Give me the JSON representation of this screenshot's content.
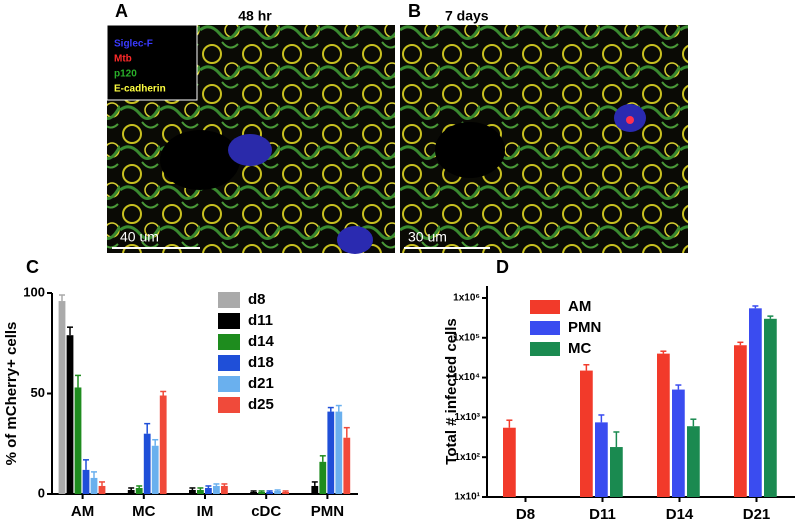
{
  "panels": [
    {
      "label": "A",
      "title": "48 hr",
      "legend": [
        "Siglec-F",
        "Mtb",
        "p120",
        "E-cadherin"
      ],
      "scale_bar": "40 um"
    },
    {
      "label": "B",
      "title": "7 days",
      "scale_bar": "30 um"
    }
  ],
  "chart_data": [
    {
      "type": "bar",
      "panel_label": "C",
      "y_label": "% of mCherry+ cells",
      "categories": [
        "AM",
        "MC",
        "IM",
        "cDC",
        "PMN"
      ],
      "ylim": [
        0,
        100
      ],
      "yticks": [
        0,
        50,
        100
      ],
      "legend": "upper right",
      "series": [
        {
          "name": "d8",
          "color": "#aaaaaa",
          "values": [
            96,
            null,
            null,
            null,
            null
          ],
          "errors": [
            3,
            null,
            null,
            null,
            null
          ]
        },
        {
          "name": "d11",
          "color": "#000000",
          "values": [
            79,
            2,
            2,
            1,
            4
          ],
          "errors": [
            4,
            1,
            1,
            0.5,
            2
          ]
        },
        {
          "name": "d14",
          "color": "#1e8c1e",
          "values": [
            53,
            3,
            2,
            1,
            16
          ],
          "errors": [
            6,
            1,
            1,
            0.5,
            3
          ]
        },
        {
          "name": "d18",
          "color": "#1f4fd8",
          "values": [
            12,
            30,
            3,
            1,
            41
          ],
          "errors": [
            5,
            5,
            1,
            0.5,
            2
          ]
        },
        {
          "name": "d21",
          "color": "#6ab0ee",
          "values": [
            8,
            24,
            4,
            1.5,
            41
          ],
          "errors": [
            3,
            3,
            1,
            0.5,
            3
          ]
        },
        {
          "name": "d25",
          "color": "#f04a3a",
          "values": [
            4,
            49,
            4,
            1,
            28
          ],
          "errors": [
            2,
            2,
            1,
            0.5,
            5
          ]
        }
      ]
    },
    {
      "type": "bar",
      "panel_label": "D",
      "y_label": "Total # infected cells",
      "log_scale": true,
      "categories": [
        "D8",
        "D11",
        "D14",
        "D21"
      ],
      "ylim": [
        10,
        2000000
      ],
      "yticks": [
        {
          "value": 10,
          "label": "1x10¹"
        },
        {
          "value": 100,
          "label": "1x10²"
        },
        {
          "value": 1000,
          "label": "1x10³"
        },
        {
          "value": 10000,
          "label": "1x10⁴"
        },
        {
          "value": 100000,
          "label": "1x10⁵"
        },
        {
          "value": 1000000,
          "label": "1x10⁶"
        }
      ],
      "legend": "upper left",
      "series": [
        {
          "name": "AM",
          "color": "#f23a2a",
          "values": [
            550,
            15000,
            40000,
            65000
          ],
          "errors": [
            300,
            6000,
            6000,
            12000
          ]
        },
        {
          "name": "PMN",
          "color": "#3a4cf0",
          "values": [
            null,
            750,
            5000,
            550000
          ],
          "errors": [
            null,
            400,
            1500,
            80000
          ]
        },
        {
          "name": "MC",
          "color": "#1a8a50",
          "values": [
            null,
            180,
            600,
            300000
          ],
          "errors": [
            null,
            250,
            300,
            50000
          ]
        }
      ]
    }
  ]
}
